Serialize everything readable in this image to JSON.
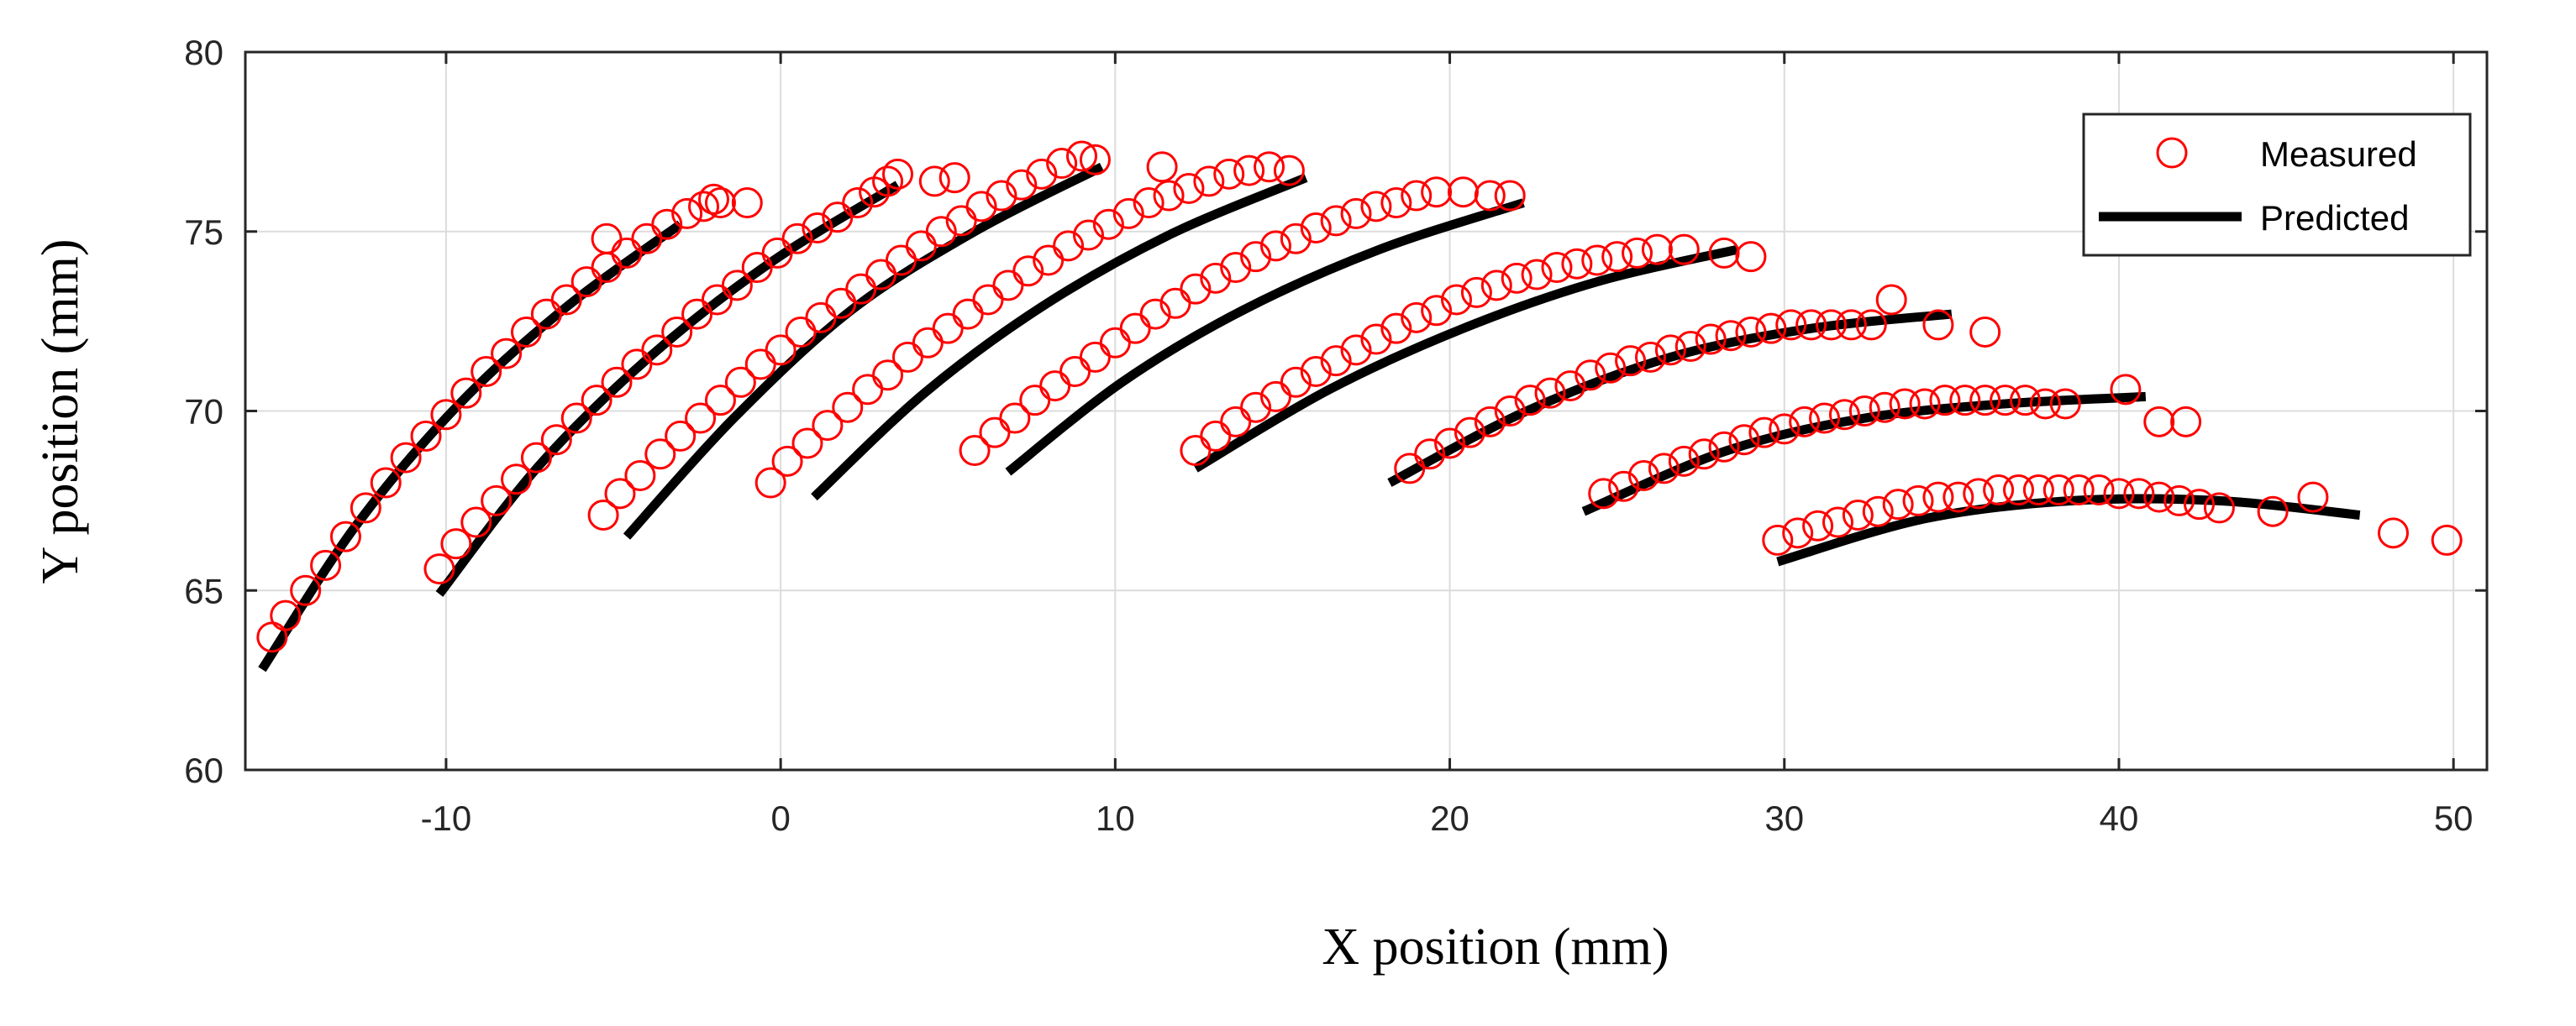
{
  "chart_data": {
    "type": "scatter",
    "title": "",
    "xlabel": "X position (mm)",
    "ylabel": "Y position (mm)",
    "xlim": [
      -16,
      51
    ],
    "ylim": [
      60,
      80
    ],
    "xticks": [
      -10,
      0,
      10,
      20,
      30,
      40,
      50
    ],
    "yticks": [
      60,
      65,
      70,
      75,
      80
    ],
    "grid": true,
    "legend_position": "top-right",
    "legend": [
      {
        "label": "Measured",
        "style": "red-circle"
      },
      {
        "label": "Predicted",
        "style": "black-line"
      }
    ],
    "colors": {
      "measured": "#ff0000",
      "predicted": "#000000"
    },
    "series": [
      {
        "name": "Measured",
        "kind": "scatter",
        "points": [
          [
            -15.2,
            63.7
          ],
          [
            -14.8,
            64.3
          ],
          [
            -14.2,
            65.0
          ],
          [
            -13.6,
            65.7
          ],
          [
            -13.0,
            66.5
          ],
          [
            -12.4,
            67.3
          ],
          [
            -11.8,
            68.0
          ],
          [
            -11.2,
            68.7
          ],
          [
            -10.6,
            69.3
          ],
          [
            -10.0,
            69.9
          ],
          [
            -9.4,
            70.5
          ],
          [
            -8.8,
            71.1
          ],
          [
            -8.2,
            71.6
          ],
          [
            -7.6,
            72.2
          ],
          [
            -7.0,
            72.7
          ],
          [
            -6.4,
            73.1
          ],
          [
            -5.8,
            73.6
          ],
          [
            -5.2,
            74.0
          ],
          [
            -4.6,
            74.4
          ],
          [
            -4.0,
            74.8
          ],
          [
            -3.4,
            75.2
          ],
          [
            -2.8,
            75.5
          ],
          [
            -2.3,
            75.7
          ],
          [
            -1.8,
            75.8
          ],
          [
            -1.0,
            75.8
          ],
          [
            -5.2,
            74.8
          ],
          [
            -2.0,
            75.9
          ],
          [
            -10.2,
            65.6
          ],
          [
            -9.7,
            66.3
          ],
          [
            -9.1,
            66.9
          ],
          [
            -8.5,
            67.5
          ],
          [
            -7.9,
            68.1
          ],
          [
            -7.3,
            68.7
          ],
          [
            -6.7,
            69.2
          ],
          [
            -6.1,
            69.8
          ],
          [
            -5.5,
            70.3
          ],
          [
            -4.9,
            70.8
          ],
          [
            -4.3,
            71.3
          ],
          [
            -3.7,
            71.7
          ],
          [
            -3.1,
            72.2
          ],
          [
            -2.5,
            72.7
          ],
          [
            -1.9,
            73.1
          ],
          [
            -1.3,
            73.5
          ],
          [
            -0.7,
            74.0
          ],
          [
            -0.1,
            74.4
          ],
          [
            0.5,
            74.8
          ],
          [
            1.1,
            75.1
          ],
          [
            1.7,
            75.4
          ],
          [
            2.3,
            75.8
          ],
          [
            2.8,
            76.1
          ],
          [
            3.2,
            76.4
          ],
          [
            3.5,
            76.6
          ],
          [
            4.6,
            76.4
          ],
          [
            5.2,
            76.5
          ],
          [
            -5.3,
            67.1
          ],
          [
            -4.8,
            67.7
          ],
          [
            -4.2,
            68.2
          ],
          [
            -3.6,
            68.8
          ],
          [
            -3.0,
            69.3
          ],
          [
            -2.4,
            69.8
          ],
          [
            -1.8,
            70.3
          ],
          [
            -1.2,
            70.8
          ],
          [
            -0.6,
            71.3
          ],
          [
            0.0,
            71.7
          ],
          [
            0.6,
            72.2
          ],
          [
            1.2,
            72.6
          ],
          [
            1.8,
            73.0
          ],
          [
            2.4,
            73.4
          ],
          [
            3.0,
            73.8
          ],
          [
            3.6,
            74.2
          ],
          [
            4.2,
            74.6
          ],
          [
            4.8,
            75.0
          ],
          [
            5.4,
            75.3
          ],
          [
            6.0,
            75.7
          ],
          [
            6.6,
            76.0
          ],
          [
            7.2,
            76.3
          ],
          [
            7.8,
            76.6
          ],
          [
            8.4,
            76.9
          ],
          [
            9.0,
            77.1
          ],
          [
            9.4,
            77.0
          ],
          [
            11.4,
            76.8
          ],
          [
            -0.3,
            68.0
          ],
          [
            0.2,
            68.6
          ],
          [
            0.8,
            69.1
          ],
          [
            1.4,
            69.6
          ],
          [
            2.0,
            70.1
          ],
          [
            2.6,
            70.6
          ],
          [
            3.2,
            71.0
          ],
          [
            3.8,
            71.5
          ],
          [
            4.4,
            71.9
          ],
          [
            5.0,
            72.3
          ],
          [
            5.6,
            72.7
          ],
          [
            6.2,
            73.1
          ],
          [
            6.8,
            73.5
          ],
          [
            7.4,
            73.9
          ],
          [
            8.0,
            74.2
          ],
          [
            8.6,
            74.6
          ],
          [
            9.2,
            74.9
          ],
          [
            9.8,
            75.2
          ],
          [
            10.4,
            75.5
          ],
          [
            11.0,
            75.8
          ],
          [
            11.6,
            76.0
          ],
          [
            12.2,
            76.2
          ],
          [
            12.8,
            76.4
          ],
          [
            13.4,
            76.6
          ],
          [
            14.0,
            76.7
          ],
          [
            14.6,
            76.8
          ],
          [
            15.2,
            76.7
          ],
          [
            5.8,
            68.9
          ],
          [
            6.4,
            69.4
          ],
          [
            7.0,
            69.8
          ],
          [
            7.6,
            70.3
          ],
          [
            8.2,
            70.7
          ],
          [
            8.8,
            71.1
          ],
          [
            9.4,
            71.5
          ],
          [
            10.0,
            71.9
          ],
          [
            10.6,
            72.3
          ],
          [
            11.2,
            72.7
          ],
          [
            11.8,
            73.0
          ],
          [
            12.4,
            73.4
          ],
          [
            13.0,
            73.7
          ],
          [
            13.6,
            74.0
          ],
          [
            14.2,
            74.3
          ],
          [
            14.8,
            74.6
          ],
          [
            15.4,
            74.8
          ],
          [
            16.0,
            75.1
          ],
          [
            16.6,
            75.3
          ],
          [
            17.2,
            75.5
          ],
          [
            17.8,
            75.7
          ],
          [
            18.4,
            75.8
          ],
          [
            19.0,
            76.0
          ],
          [
            19.6,
            76.1
          ],
          [
            20.4,
            76.1
          ],
          [
            21.2,
            76.0
          ],
          [
            21.8,
            76.0
          ],
          [
            12.4,
            68.9
          ],
          [
            13.0,
            69.3
          ],
          [
            13.6,
            69.7
          ],
          [
            14.2,
            70.1
          ],
          [
            14.8,
            70.4
          ],
          [
            15.4,
            70.8
          ],
          [
            16.0,
            71.1
          ],
          [
            16.6,
            71.4
          ],
          [
            17.2,
            71.7
          ],
          [
            17.8,
            72.0
          ],
          [
            18.4,
            72.3
          ],
          [
            19.0,
            72.6
          ],
          [
            19.6,
            72.8
          ],
          [
            20.2,
            73.1
          ],
          [
            20.8,
            73.3
          ],
          [
            21.4,
            73.5
          ],
          [
            22.0,
            73.7
          ],
          [
            22.6,
            73.8
          ],
          [
            23.2,
            74.0
          ],
          [
            23.8,
            74.1
          ],
          [
            24.4,
            74.2
          ],
          [
            25.0,
            74.3
          ],
          [
            25.6,
            74.4
          ],
          [
            26.2,
            74.5
          ],
          [
            27.0,
            74.5
          ],
          [
            28.2,
            74.4
          ],
          [
            29.0,
            74.3
          ],
          [
            18.8,
            68.4
          ],
          [
            19.4,
            68.8
          ],
          [
            20.0,
            69.1
          ],
          [
            20.6,
            69.4
          ],
          [
            21.2,
            69.7
          ],
          [
            21.8,
            70.0
          ],
          [
            22.4,
            70.3
          ],
          [
            23.0,
            70.5
          ],
          [
            23.6,
            70.7
          ],
          [
            24.2,
            71.0
          ],
          [
            24.8,
            71.2
          ],
          [
            25.4,
            71.4
          ],
          [
            26.0,
            71.5
          ],
          [
            26.6,
            71.7
          ],
          [
            27.2,
            71.8
          ],
          [
            27.8,
            72.0
          ],
          [
            28.4,
            72.1
          ],
          [
            29.0,
            72.2
          ],
          [
            29.6,
            72.3
          ],
          [
            30.2,
            72.4
          ],
          [
            30.8,
            72.4
          ],
          [
            31.4,
            72.4
          ],
          [
            32.0,
            72.4
          ],
          [
            32.6,
            72.4
          ],
          [
            33.2,
            73.1
          ],
          [
            34.6,
            72.4
          ],
          [
            36.0,
            72.2
          ],
          [
            24.6,
            67.7
          ],
          [
            25.2,
            67.9
          ],
          [
            25.8,
            68.2
          ],
          [
            26.4,
            68.4
          ],
          [
            27.0,
            68.6
          ],
          [
            27.6,
            68.8
          ],
          [
            28.2,
            69.0
          ],
          [
            28.8,
            69.2
          ],
          [
            29.4,
            69.4
          ],
          [
            30.0,
            69.5
          ],
          [
            30.6,
            69.7
          ],
          [
            31.2,
            69.8
          ],
          [
            31.8,
            69.9
          ],
          [
            32.4,
            70.0
          ],
          [
            33.0,
            70.1
          ],
          [
            33.6,
            70.2
          ],
          [
            34.2,
            70.2
          ],
          [
            34.8,
            70.3
          ],
          [
            35.4,
            70.3
          ],
          [
            36.0,
            70.3
          ],
          [
            36.6,
            70.3
          ],
          [
            37.2,
            70.3
          ],
          [
            37.8,
            70.2
          ],
          [
            38.4,
            70.2
          ],
          [
            40.2,
            70.6
          ],
          [
            41.2,
            69.7
          ],
          [
            42.0,
            69.7
          ],
          [
            29.8,
            66.4
          ],
          [
            30.4,
            66.6
          ],
          [
            31.0,
            66.8
          ],
          [
            31.6,
            66.9
          ],
          [
            32.2,
            67.1
          ],
          [
            32.8,
            67.2
          ],
          [
            33.4,
            67.4
          ],
          [
            34.0,
            67.5
          ],
          [
            34.6,
            67.6
          ],
          [
            35.2,
            67.6
          ],
          [
            35.8,
            67.7
          ],
          [
            36.4,
            67.8
          ],
          [
            37.0,
            67.8
          ],
          [
            37.6,
            67.8
          ],
          [
            38.2,
            67.8
          ],
          [
            38.8,
            67.8
          ],
          [
            39.4,
            67.8
          ],
          [
            40.0,
            67.7
          ],
          [
            40.6,
            67.7
          ],
          [
            41.2,
            67.6
          ],
          [
            41.8,
            67.5
          ],
          [
            42.4,
            67.4
          ],
          [
            43.0,
            67.3
          ],
          [
            44.6,
            67.2
          ],
          [
            45.8,
            67.6
          ],
          [
            48.2,
            66.6
          ],
          [
            49.8,
            66.4
          ]
        ]
      },
      {
        "name": "Predicted",
        "kind": "line",
        "curves": [
          [
            [
              -15.5,
              62.8
            ],
            [
              -12.7,
              66.8
            ],
            [
              -9.6,
              70.2
            ],
            [
              -6.4,
              72.9
            ],
            [
              -3.0,
              75.2
            ]
          ],
          [
            [
              -10.2,
              64.9
            ],
            [
              -7.2,
              68.5
            ],
            [
              -3.8,
              71.6
            ],
            [
              -0.2,
              74.2
            ],
            [
              3.5,
              76.3
            ]
          ],
          [
            [
              -4.6,
              66.5
            ],
            [
              -1.4,
              69.8
            ],
            [
              2.1,
              72.8
            ],
            [
              5.8,
              75.0
            ],
            [
              9.6,
              76.8
            ]
          ],
          [
            [
              1.0,
              67.6
            ],
            [
              4.3,
              70.5
            ],
            [
              7.8,
              72.9
            ],
            [
              11.6,
              74.9
            ],
            [
              15.7,
              76.5
            ]
          ],
          [
            [
              6.8,
              68.3
            ],
            [
              10.2,
              70.8
            ],
            [
              13.8,
              72.8
            ],
            [
              17.9,
              74.5
            ],
            [
              22.2,
              75.8
            ]
          ],
          [
            [
              12.4,
              68.4
            ],
            [
              16.4,
              70.6
            ],
            [
              20.4,
              72.3
            ],
            [
              24.4,
              73.6
            ],
            [
              28.6,
              74.5
            ]
          ],
          [
            [
              18.2,
              68.0
            ],
            [
              22.3,
              70.0
            ],
            [
              26.6,
              71.5
            ],
            [
              30.8,
              72.3
            ],
            [
              35.0,
              72.7
            ]
          ],
          [
            [
              24.0,
              67.2
            ],
            [
              28.3,
              68.9
            ],
            [
              32.4,
              69.8
            ],
            [
              36.6,
              70.2
            ],
            [
              40.8,
              70.4
            ]
          ],
          [
            [
              29.8,
              65.8
            ],
            [
              34.2,
              67.0
            ],
            [
              38.6,
              67.5
            ],
            [
              43.0,
              67.5
            ],
            [
              47.2,
              67.1
            ]
          ]
        ]
      }
    ]
  }
}
